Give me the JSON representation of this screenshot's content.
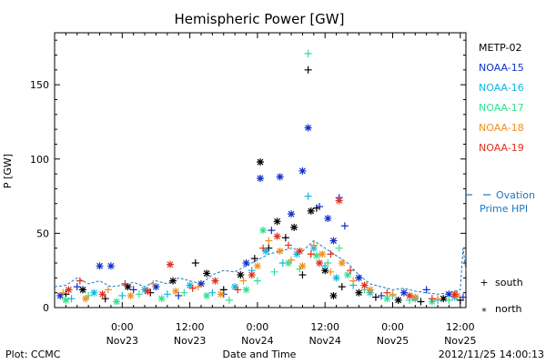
{
  "chart_data": {
    "type": "scatter",
    "title": "Hemispheric Power [GW]",
    "ylabel": "P [GW]",
    "xlabel": "Date and Time",
    "ylim": [
      0,
      185
    ],
    "yticks": [
      0,
      50,
      100,
      150
    ],
    "x_unit": "hours since 2012-11-22 12:00 UT",
    "xlim": [
      0,
      73
    ],
    "xticks": [
      {
        "x": 12,
        "time": "0:00",
        "date": "Nov23"
      },
      {
        "x": 24,
        "time": "12:00",
        "date": "Nov23"
      },
      {
        "x": 36,
        "time": "0:00",
        "date": "Nov24"
      },
      {
        "x": 48,
        "time": "12:00",
        "date": "Nov24"
      },
      {
        "x": 60,
        "time": "0:00",
        "date": "Nov25"
      },
      {
        "x": 72,
        "time": "12:00",
        "date": "Nov25"
      }
    ],
    "series": [
      {
        "name": "METP-02",
        "color": "#000000",
        "points": [
          {
            "x": 2,
            "y": 9,
            "s": "south"
          },
          {
            "x": 5,
            "y": 12,
            "s": "north"
          },
          {
            "x": 9,
            "y": 6,
            "s": "south"
          },
          {
            "x": 13,
            "y": 14,
            "s": "north"
          },
          {
            "x": 17,
            "y": 10,
            "s": "south"
          },
          {
            "x": 21,
            "y": 18,
            "s": "north"
          },
          {
            "x": 25,
            "y": 30,
            "s": "south"
          },
          {
            "x": 27,
            "y": 23,
            "s": "north"
          },
          {
            "x": 30,
            "y": 12,
            "s": "south"
          },
          {
            "x": 33,
            "y": 22,
            "s": "north"
          },
          {
            "x": 35.5,
            "y": 33,
            "s": "south"
          },
          {
            "x": 36.5,
            "y": 98,
            "s": "north"
          },
          {
            "x": 38,
            "y": 40,
            "s": "south"
          },
          {
            "x": 39.5,
            "y": 58,
            "s": "north"
          },
          {
            "x": 41,
            "y": 47,
            "s": "south"
          },
          {
            "x": 42.5,
            "y": 54,
            "s": "north"
          },
          {
            "x": 44,
            "y": 22,
            "s": "south"
          },
          {
            "x": 45,
            "y": 160,
            "s": "south"
          },
          {
            "x": 45.5,
            "y": 65,
            "s": "north"
          },
          {
            "x": 46.5,
            "y": 67,
            "s": "south"
          },
          {
            "x": 48,
            "y": 25,
            "s": "north"
          },
          {
            "x": 49.5,
            "y": 8,
            "s": "north"
          },
          {
            "x": 51,
            "y": 14,
            "s": "south"
          },
          {
            "x": 54,
            "y": 10,
            "s": "north"
          },
          {
            "x": 57,
            "y": 7,
            "s": "south"
          },
          {
            "x": 61,
            "y": 5,
            "s": "north"
          },
          {
            "x": 65,
            "y": 4,
            "s": "south"
          },
          {
            "x": 69,
            "y": 6,
            "s": "north"
          },
          {
            "x": 72,
            "y": 5,
            "s": "south"
          }
        ]
      },
      {
        "name": "NOAA-15",
        "color": "#1030c8",
        "points": [
          {
            "x": 1,
            "y": 8,
            "s": "north"
          },
          {
            "x": 4,
            "y": 14,
            "s": "south"
          },
          {
            "x": 8,
            "y": 28,
            "s": "north"
          },
          {
            "x": 10,
            "y": 28,
            "s": "north"
          },
          {
            "x": 14,
            "y": 12,
            "s": "south"
          },
          {
            "x": 18,
            "y": 14,
            "s": "north"
          },
          {
            "x": 22,
            "y": 8,
            "s": "south"
          },
          {
            "x": 26,
            "y": 16,
            "s": "north"
          },
          {
            "x": 30,
            "y": 9,
            "s": "south"
          },
          {
            "x": 34,
            "y": 30,
            "s": "north"
          },
          {
            "x": 36.5,
            "y": 87,
            "s": "north"
          },
          {
            "x": 38.5,
            "y": 52,
            "s": "south"
          },
          {
            "x": 40,
            "y": 88,
            "s": "north"
          },
          {
            "x": 42,
            "y": 63,
            "s": "north"
          },
          {
            "x": 44,
            "y": 92,
            "s": "north"
          },
          {
            "x": 45,
            "y": 121,
            "s": "north"
          },
          {
            "x": 47,
            "y": 68,
            "s": "south"
          },
          {
            "x": 48.5,
            "y": 60,
            "s": "north"
          },
          {
            "x": 49.5,
            "y": 45,
            "s": "north"
          },
          {
            "x": 50.5,
            "y": 74,
            "s": "south"
          },
          {
            "x": 51.5,
            "y": 55,
            "s": "south"
          },
          {
            "x": 54,
            "y": 20,
            "s": "north"
          },
          {
            "x": 58,
            "y": 8,
            "s": "south"
          },
          {
            "x": 62,
            "y": 10,
            "s": "north"
          },
          {
            "x": 66,
            "y": 12,
            "s": "south"
          },
          {
            "x": 70,
            "y": 9,
            "s": "north"
          },
          {
            "x": 72.5,
            "y": 7,
            "s": "south"
          }
        ]
      },
      {
        "name": "NOAA-16",
        "color": "#10b8e0",
        "points": [
          {
            "x": 3,
            "y": 6,
            "s": "south"
          },
          {
            "x": 7,
            "y": 10,
            "s": "north"
          },
          {
            "x": 12,
            "y": 8,
            "s": "south"
          },
          {
            "x": 16,
            "y": 12,
            "s": "north"
          },
          {
            "x": 20,
            "y": 9,
            "s": "south"
          },
          {
            "x": 24,
            "y": 15,
            "s": "north"
          },
          {
            "x": 28,
            "y": 10,
            "s": "south"
          },
          {
            "x": 32,
            "y": 14,
            "s": "north"
          },
          {
            "x": 35,
            "y": 25,
            "s": "south"
          },
          {
            "x": 37.5,
            "y": 38,
            "s": "north"
          },
          {
            "x": 40.5,
            "y": 30,
            "s": "south"
          },
          {
            "x": 43,
            "y": 36,
            "s": "north"
          },
          {
            "x": 45,
            "y": 75,
            "s": "south"
          },
          {
            "x": 46,
            "y": 40,
            "s": "north"
          },
          {
            "x": 48,
            "y": 28,
            "s": "south"
          },
          {
            "x": 50,
            "y": 20,
            "s": "north"
          },
          {
            "x": 53,
            "y": 15,
            "s": "south"
          },
          {
            "x": 56,
            "y": 10,
            "s": "north"
          },
          {
            "x": 60,
            "y": 8,
            "s": "south"
          },
          {
            "x": 64,
            "y": 6,
            "s": "north"
          },
          {
            "x": 68,
            "y": 5,
            "s": "south"
          },
          {
            "x": 71,
            "y": 7,
            "s": "north"
          }
        ]
      },
      {
        "name": "NOAA-17",
        "color": "#30e090",
        "points": [
          {
            "x": 2,
            "y": 5,
            "s": "north"
          },
          {
            "x": 6,
            "y": 8,
            "s": "south"
          },
          {
            "x": 11,
            "y": 4,
            "s": "north"
          },
          {
            "x": 15,
            "y": 9,
            "s": "south"
          },
          {
            "x": 19,
            "y": 6,
            "s": "north"
          },
          {
            "x": 23,
            "y": 10,
            "s": "south"
          },
          {
            "x": 27,
            "y": 8,
            "s": "north"
          },
          {
            "x": 31,
            "y": 5,
            "s": "south"
          },
          {
            "x": 34,
            "y": 12,
            "s": "north"
          },
          {
            "x": 36,
            "y": 18,
            "s": "south"
          },
          {
            "x": 37,
            "y": 52,
            "s": "north"
          },
          {
            "x": 39,
            "y": 24,
            "s": "south"
          },
          {
            "x": 41.5,
            "y": 30,
            "s": "north"
          },
          {
            "x": 43.5,
            "y": 26,
            "s": "south"
          },
          {
            "x": 45,
            "y": 171,
            "s": "south"
          },
          {
            "x": 46.5,
            "y": 35,
            "s": "north"
          },
          {
            "x": 48.5,
            "y": 30,
            "s": "south"
          },
          {
            "x": 50.5,
            "y": 40,
            "s": "south"
          },
          {
            "x": 52,
            "y": 22,
            "s": "north"
          },
          {
            "x": 55,
            "y": 12,
            "s": "south"
          },
          {
            "x": 59,
            "y": 6,
            "s": "north"
          },
          {
            "x": 63,
            "y": 5,
            "s": "south"
          },
          {
            "x": 67,
            "y": 4,
            "s": "north"
          },
          {
            "x": 70,
            "y": 5,
            "s": "south"
          }
        ]
      },
      {
        "name": "NOAA-18",
        "color": "#f09020",
        "points": [
          {
            "x": 1.5,
            "y": 10,
            "s": "south"
          },
          {
            "x": 5.5,
            "y": 6,
            "s": "north"
          },
          {
            "x": 9.5,
            "y": 12,
            "s": "south"
          },
          {
            "x": 13.5,
            "y": 8,
            "s": "north"
          },
          {
            "x": 17.5,
            "y": 16,
            "s": "south"
          },
          {
            "x": 21.5,
            "y": 11,
            "s": "north"
          },
          {
            "x": 25.5,
            "y": 14,
            "s": "south"
          },
          {
            "x": 29.5,
            "y": 9,
            "s": "north"
          },
          {
            "x": 33.5,
            "y": 18,
            "s": "south"
          },
          {
            "x": 36,
            "y": 28,
            "s": "north"
          },
          {
            "x": 38,
            "y": 45,
            "s": "south"
          },
          {
            "x": 40,
            "y": 38,
            "s": "north"
          },
          {
            "x": 42,
            "y": 32,
            "s": "south"
          },
          {
            "x": 44,
            "y": 28,
            "s": "north"
          },
          {
            "x": 46,
            "y": 42,
            "s": "south"
          },
          {
            "x": 47.5,
            "y": 36,
            "s": "north"
          },
          {
            "x": 49,
            "y": 24,
            "s": "south"
          },
          {
            "x": 51,
            "y": 30,
            "s": "north"
          },
          {
            "x": 53,
            "y": 18,
            "s": "south"
          },
          {
            "x": 56,
            "y": 12,
            "s": "north"
          },
          {
            "x": 60,
            "y": 9,
            "s": "south"
          },
          {
            "x": 64,
            "y": 7,
            "s": "north"
          },
          {
            "x": 68,
            "y": 6,
            "s": "south"
          },
          {
            "x": 71.5,
            "y": 8,
            "s": "north"
          }
        ]
      },
      {
        "name": "NOAA-19",
        "color": "#e03020",
        "points": [
          {
            "x": 2.5,
            "y": 12,
            "s": "north"
          },
          {
            "x": 4.5,
            "y": 18,
            "s": "south"
          },
          {
            "x": 8.5,
            "y": 9,
            "s": "north"
          },
          {
            "x": 12.5,
            "y": 16,
            "s": "south"
          },
          {
            "x": 16.5,
            "y": 11,
            "s": "north"
          },
          {
            "x": 20.5,
            "y": 29,
            "s": "north"
          },
          {
            "x": 24.5,
            "y": 13,
            "s": "south"
          },
          {
            "x": 28.5,
            "y": 18,
            "s": "north"
          },
          {
            "x": 32.5,
            "y": 12,
            "s": "south"
          },
          {
            "x": 35,
            "y": 22,
            "s": "north"
          },
          {
            "x": 37,
            "y": 40,
            "s": "south"
          },
          {
            "x": 39.5,
            "y": 48,
            "s": "north"
          },
          {
            "x": 41.5,
            "y": 42,
            "s": "south"
          },
          {
            "x": 43.5,
            "y": 38,
            "s": "north"
          },
          {
            "x": 45.5,
            "y": 36,
            "s": "south"
          },
          {
            "x": 47,
            "y": 30,
            "s": "north"
          },
          {
            "x": 49,
            "y": 36,
            "s": "south"
          },
          {
            "x": 50.5,
            "y": 72,
            "s": "north"
          },
          {
            "x": 52.5,
            "y": 25,
            "s": "south"
          },
          {
            "x": 55,
            "y": 15,
            "s": "north"
          },
          {
            "x": 59,
            "y": 10,
            "s": "south"
          },
          {
            "x": 63,
            "y": 8,
            "s": "north"
          },
          {
            "x": 67,
            "y": 6,
            "s": "south"
          },
          {
            "x": 71,
            "y": 9,
            "s": "north"
          }
        ]
      }
    ],
    "ovation": {
      "name": "Ovation Prime HPI",
      "color": "#1878c8",
      "points": [
        [
          0,
          14
        ],
        [
          2,
          15
        ],
        [
          4,
          20
        ],
        [
          6,
          16
        ],
        [
          8,
          18
        ],
        [
          10,
          14
        ],
        [
          12,
          15
        ],
        [
          14,
          17
        ],
        [
          16,
          14
        ],
        [
          18,
          18
        ],
        [
          20,
          16
        ],
        [
          22,
          20
        ],
        [
          24,
          18
        ],
        [
          26,
          16
        ],
        [
          28,
          22
        ],
        [
          30,
          25
        ],
        [
          32,
          24
        ],
        [
          34,
          28
        ],
        [
          36,
          32
        ],
        [
          38,
          36
        ],
        [
          40,
          38
        ],
        [
          42,
          40
        ],
        [
          44,
          38
        ],
        [
          46,
          45
        ],
        [
          48,
          40
        ],
        [
          50,
          35
        ],
        [
          52,
          30
        ],
        [
          54,
          22
        ],
        [
          56,
          16
        ],
        [
          58,
          14
        ],
        [
          60,
          12
        ],
        [
          62,
          13
        ],
        [
          64,
          11
        ],
        [
          66,
          10
        ],
        [
          68,
          9
        ],
        [
          70,
          10
        ],
        [
          72,
          12
        ],
        [
          72.5,
          40
        ],
        [
          73,
          25
        ]
      ]
    },
    "legend": {
      "entries": [
        "METP-02",
        "NOAA-15",
        "NOAA-16",
        "NOAA-17",
        "NOAA-18",
        "NOAA-19"
      ],
      "colors": [
        "#000000",
        "#1030c8",
        "#10b8e0",
        "#30e090",
        "#f09020",
        "#e03020"
      ],
      "ovation_label_1": "Ovation",
      "ovation_label_2": "Prime HPI",
      "south_label": "south",
      "north_label": "north",
      "placement": "right"
    }
  },
  "footer": {
    "left": "Plot: CCMC",
    "right": "2012/11/25 14:00:13"
  }
}
